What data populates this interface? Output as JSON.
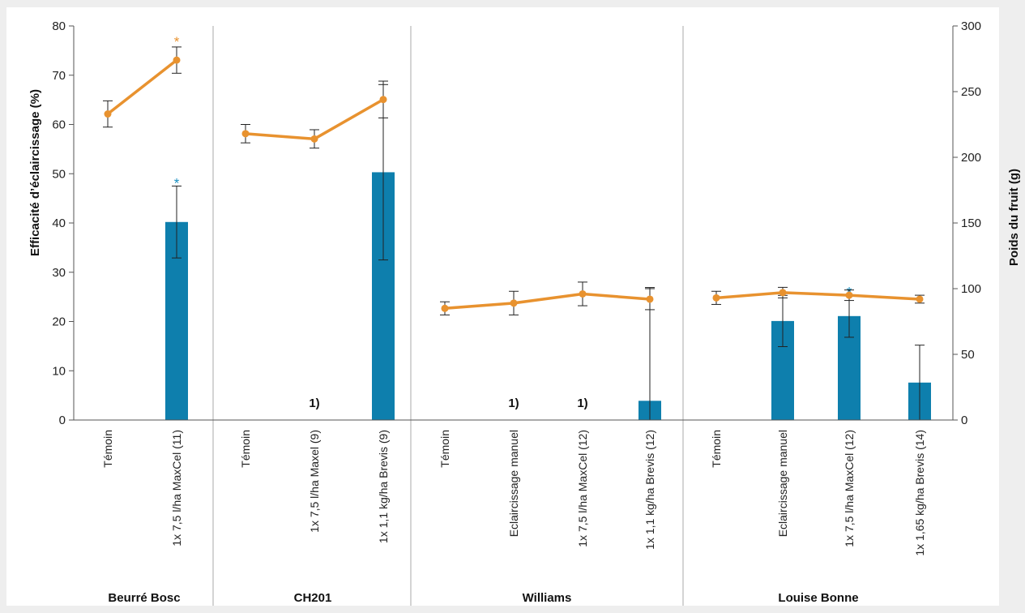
{
  "chart_data": {
    "type": "bar",
    "title": "",
    "ylabel": "Efficacité d’éclaircissage (%)",
    "y2label": "Poids du fruit (g)",
    "ylim": [
      0,
      80
    ],
    "y2lim": [
      0,
      300
    ],
    "yticks": [
      0,
      10,
      20,
      30,
      40,
      50,
      60,
      70,
      80
    ],
    "y2ticks": [
      0,
      50,
      100,
      150,
      200,
      250,
      300
    ],
    "grid": false,
    "groups": [
      {
        "name": "Beurré Bosc",
        "categories": [
          {
            "label": "Témoin",
            "bar": null,
            "bar_err": null,
            "bar_star": false,
            "note": "",
            "line": 233,
            "line_err": 10,
            "line_star": false
          },
          {
            "label": "1x 7,5 l/ha MaxCel (11)",
            "bar": 40.2,
            "bar_err": 7.3,
            "bar_star": true,
            "note": "",
            "line": 274,
            "line_err": 10,
            "line_star": true
          }
        ]
      },
      {
        "name": "CH201",
        "categories": [
          {
            "label": "Témoin",
            "bar": null,
            "bar_err": null,
            "bar_star": false,
            "note": "",
            "line": 218,
            "line_err": 7,
            "line_star": false
          },
          {
            "label": "1x 7,5 l/ha Maxel (9)",
            "bar": null,
            "bar_err": null,
            "bar_star": false,
            "note": "1)",
            "line": 214,
            "line_err": 7,
            "line_star": false
          },
          {
            "label": "1x 1,1 kg/ha Brevis (9)",
            "bar": 50.3,
            "bar_err": 17.8,
            "bar_star": false,
            "note": "",
            "line": 244,
            "line_err": 14,
            "line_star": false
          }
        ]
      },
      {
        "name": "Williams",
        "categories": [
          {
            "label": "Témoin",
            "bar": null,
            "bar_err": null,
            "bar_star": false,
            "note": "",
            "line": 85,
            "line_err": 5,
            "line_star": false
          },
          {
            "label": "Eclaircissage manuel",
            "bar": null,
            "bar_err": null,
            "bar_star": false,
            "note": "1)",
            "line": 89,
            "line_err": 9,
            "line_star": false
          },
          {
            "label": "1x 7,5 l/ha MaxCel (12)",
            "bar": null,
            "bar_err": null,
            "bar_star": false,
            "note": "1)",
            "line": 96,
            "line_err": 9,
            "line_star": false
          },
          {
            "label": "1x 1,1 kg/ha Brevis (12)",
            "bar": 3.9,
            "bar_err": 23,
            "bar_star": false,
            "note": "",
            "line": 92,
            "line_err": 8,
            "line_star": false
          }
        ]
      },
      {
        "name": "Louise Bonne",
        "categories": [
          {
            "label": "Témoin",
            "bar": null,
            "bar_err": null,
            "bar_star": false,
            "note": "",
            "line": 93,
            "line_err": 5,
            "line_star": false
          },
          {
            "label": "Eclaircissage manuel",
            "bar": 20.1,
            "bar_err": 5.2,
            "bar_star": false,
            "note": "",
            "line": 97,
            "line_err": 4,
            "line_star": false
          },
          {
            "label": "1x 7,5 l/ha MaxCel (12)",
            "bar": 21.1,
            "bar_err": 4.3,
            "bar_star": true,
            "note": "",
            "line": 95,
            "line_err": 4,
            "line_star": false
          },
          {
            "label": "1x 1,65 kg/ha Brevis (14)",
            "bar": 7.6,
            "bar_err": 7.6,
            "bar_star": false,
            "note": "",
            "line": 92,
            "line_err": 3,
            "line_star": false
          }
        ]
      }
    ]
  },
  "colors": {
    "bar": "#0e7fad",
    "line": "#e8922f",
    "bar_star": "#1a8fc0",
    "line_star": "#e8922f",
    "axis": "#555555",
    "divider": "#aaaaaa",
    "plot_bg": "#ffffff",
    "page_bg": "#eeeeee"
  },
  "star_symbol": "*"
}
